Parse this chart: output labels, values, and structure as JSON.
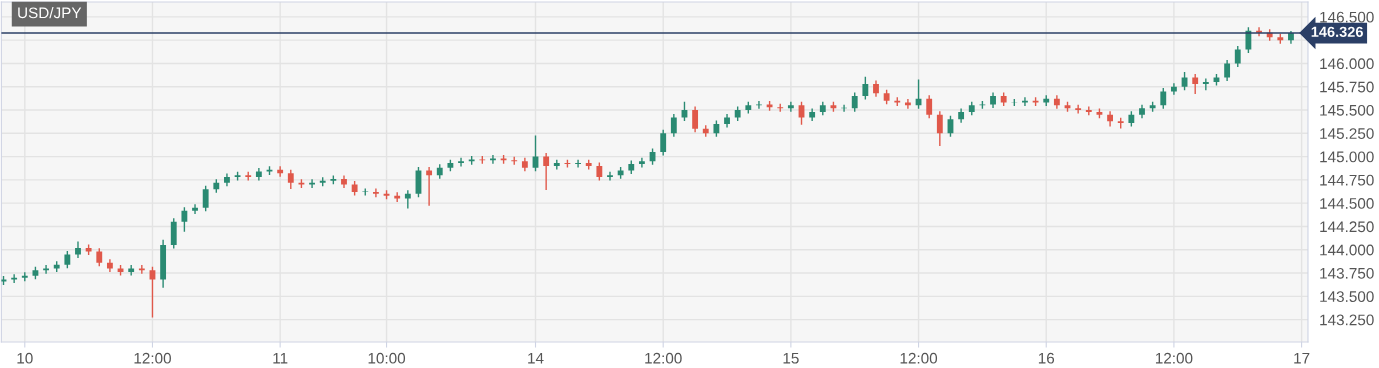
{
  "chart_data": {
    "type": "candlestick",
    "title": "USD/JPY",
    "categories": [
      null,
      null,
      "10",
      null,
      null,
      null,
      null,
      null,
      null,
      null,
      null,
      null,
      null,
      null,
      "12:00",
      null,
      null,
      null,
      null,
      null,
      null,
      null,
      null,
      null,
      null,
      null,
      "11",
      null,
      null,
      null,
      null,
      null,
      null,
      null,
      null,
      null,
      "10:00",
      null,
      null,
      null,
      null,
      null,
      null,
      null,
      null,
      null,
      null,
      null,
      null,
      null,
      "14",
      null,
      null,
      null,
      null,
      null,
      null,
      null,
      null,
      null,
      null,
      null,
      "12:00",
      null,
      null,
      null,
      null,
      null,
      null,
      null,
      null,
      null,
      null,
      null,
      "15",
      null,
      null,
      null,
      null,
      null,
      null,
      null,
      null,
      null,
      null,
      null,
      "12:00",
      null,
      null,
      null,
      null,
      null,
      null,
      null,
      null,
      null,
      null,
      null,
      "16",
      null,
      null,
      null,
      null,
      null,
      null,
      null,
      null,
      null,
      null,
      null,
      "12:00",
      null,
      null,
      null,
      null,
      null,
      null,
      null,
      null,
      null,
      null,
      null,
      "17"
    ],
    "ohlc": [
      [
        143.66,
        143.71,
        143.63,
        143.68
      ],
      [
        143.68,
        143.73,
        143.65,
        143.7
      ],
      [
        143.7,
        143.75,
        143.67,
        143.72
      ],
      [
        143.72,
        143.81,
        143.69,
        143.78
      ],
      [
        143.78,
        143.83,
        143.75,
        143.8
      ],
      [
        143.8,
        143.87,
        143.77,
        143.84
      ],
      [
        143.84,
        143.98,
        143.81,
        143.95
      ],
      [
        143.95,
        144.08,
        143.92,
        144.02
      ],
      [
        144.02,
        144.05,
        143.95,
        143.98
      ],
      [
        143.98,
        144.01,
        143.83,
        143.86
      ],
      [
        143.86,
        143.89,
        143.77,
        143.8
      ],
      [
        143.8,
        143.83,
        143.73,
        143.76
      ],
      [
        143.76,
        143.83,
        143.73,
        143.8
      ],
      [
        143.8,
        143.83,
        143.75,
        143.78
      ],
      [
        143.78,
        143.81,
        143.28,
        143.68
      ],
      [
        143.68,
        144.1,
        143.6,
        144.05
      ],
      [
        144.05,
        144.33,
        144.02,
        144.3
      ],
      [
        144.3,
        144.45,
        144.2,
        144.42
      ],
      [
        144.42,
        144.48,
        144.39,
        144.45
      ],
      [
        144.45,
        144.68,
        144.42,
        144.65
      ],
      [
        144.65,
        144.75,
        144.62,
        144.72
      ],
      [
        144.72,
        144.81,
        144.69,
        144.78
      ],
      [
        144.78,
        144.83,
        144.75,
        144.8
      ],
      [
        144.8,
        144.83,
        144.75,
        144.78
      ],
      [
        144.78,
        144.87,
        144.75,
        144.84
      ],
      [
        144.84,
        144.89,
        144.81,
        144.86
      ],
      [
        144.86,
        144.89,
        144.79,
        144.82
      ],
      [
        144.82,
        144.85,
        144.66,
        144.72
      ],
      [
        144.72,
        144.75,
        144.67,
        144.7
      ],
      [
        144.7,
        144.75,
        144.67,
        144.72
      ],
      [
        144.72,
        144.77,
        144.69,
        144.74
      ],
      [
        144.74,
        144.79,
        144.71,
        144.76
      ],
      [
        144.76,
        144.79,
        144.67,
        144.7
      ],
      [
        144.7,
        144.73,
        144.59,
        144.62
      ],
      [
        144.62,
        144.65,
        144.59,
        144.62
      ],
      [
        144.62,
        144.65,
        144.57,
        144.6
      ],
      [
        144.6,
        144.63,
        144.55,
        144.58
      ],
      [
        144.58,
        144.61,
        144.52,
        144.55
      ],
      [
        144.55,
        144.63,
        144.45,
        144.6
      ],
      [
        144.6,
        144.88,
        144.57,
        144.85
      ],
      [
        144.85,
        144.88,
        144.48,
        144.8
      ],
      [
        144.8,
        144.91,
        144.77,
        144.88
      ],
      [
        144.88,
        144.96,
        144.85,
        144.93
      ],
      [
        144.93,
        144.98,
        144.9,
        144.95
      ],
      [
        144.95,
        145.0,
        144.92,
        144.97
      ],
      [
        144.97,
        145.0,
        144.93,
        144.96
      ],
      [
        144.96,
        145.01,
        144.93,
        144.98
      ],
      [
        144.98,
        145.01,
        144.93,
        144.96
      ],
      [
        144.96,
        144.99,
        144.92,
        144.95
      ],
      [
        144.95,
        144.98,
        144.85,
        144.88
      ],
      [
        144.88,
        145.22,
        144.85,
        145.0
      ],
      [
        145.0,
        145.03,
        144.65,
        144.9
      ],
      [
        144.9,
        144.96,
        144.87,
        144.93
      ],
      [
        144.93,
        144.96,
        144.89,
        144.92
      ],
      [
        144.92,
        144.96,
        144.89,
        144.93
      ],
      [
        144.93,
        144.96,
        144.87,
        144.9
      ],
      [
        144.9,
        144.93,
        144.75,
        144.78
      ],
      [
        144.78,
        144.83,
        144.75,
        144.8
      ],
      [
        144.8,
        144.88,
        144.77,
        144.85
      ],
      [
        144.85,
        144.95,
        144.82,
        144.92
      ],
      [
        144.92,
        144.98,
        144.89,
        144.95
      ],
      [
        144.95,
        145.08,
        144.92,
        145.05
      ],
      [
        145.05,
        145.28,
        145.02,
        145.25
      ],
      [
        145.25,
        145.45,
        145.22,
        145.42
      ],
      [
        145.42,
        145.58,
        145.39,
        145.5
      ],
      [
        145.5,
        145.53,
        145.27,
        145.3
      ],
      [
        145.3,
        145.33,
        145.22,
        145.25
      ],
      [
        145.25,
        145.38,
        145.22,
        145.35
      ],
      [
        145.35,
        145.45,
        145.32,
        145.42
      ],
      [
        145.42,
        145.53,
        145.39,
        145.5
      ],
      [
        145.5,
        145.58,
        145.47,
        145.55
      ],
      [
        145.55,
        145.59,
        145.52,
        145.56
      ],
      [
        145.56,
        145.59,
        145.5,
        145.53
      ],
      [
        145.53,
        145.56,
        145.49,
        145.52
      ],
      [
        145.52,
        145.58,
        145.49,
        145.55
      ],
      [
        145.55,
        145.58,
        145.35,
        145.42
      ],
      [
        145.42,
        145.51,
        145.39,
        145.48
      ],
      [
        145.48,
        145.58,
        145.45,
        145.55
      ],
      [
        145.55,
        145.58,
        145.49,
        145.52
      ],
      [
        145.52,
        145.55,
        145.49,
        145.52
      ],
      [
        145.52,
        145.68,
        145.49,
        145.65
      ],
      [
        145.65,
        145.85,
        145.62,
        145.78
      ],
      [
        145.78,
        145.81,
        145.65,
        145.68
      ],
      [
        145.68,
        145.71,
        145.57,
        145.6
      ],
      [
        145.6,
        145.63,
        145.55,
        145.58
      ],
      [
        145.58,
        145.61,
        145.52,
        145.55
      ],
      [
        145.55,
        145.82,
        145.52,
        145.62
      ],
      [
        145.62,
        145.65,
        145.42,
        145.45
      ],
      [
        145.45,
        145.48,
        145.12,
        145.25
      ],
      [
        145.25,
        145.43,
        145.22,
        145.4
      ],
      [
        145.4,
        145.51,
        145.37,
        145.48
      ],
      [
        145.48,
        145.58,
        145.45,
        145.55
      ],
      [
        145.55,
        145.59,
        145.52,
        145.56
      ],
      [
        145.56,
        145.68,
        145.53,
        145.65
      ],
      [
        145.65,
        145.68,
        145.55,
        145.58
      ],
      [
        145.58,
        145.61,
        145.55,
        145.58
      ],
      [
        145.58,
        145.63,
        145.55,
        145.6
      ],
      [
        145.6,
        145.63,
        145.55,
        145.58
      ],
      [
        145.58,
        145.65,
        145.55,
        145.62
      ],
      [
        145.62,
        145.65,
        145.52,
        145.55
      ],
      [
        145.55,
        145.58,
        145.49,
        145.52
      ],
      [
        145.52,
        145.55,
        145.47,
        145.5
      ],
      [
        145.5,
        145.53,
        145.45,
        145.48
      ],
      [
        145.48,
        145.51,
        145.42,
        145.45
      ],
      [
        145.45,
        145.48,
        145.33,
        145.38
      ],
      [
        145.38,
        145.41,
        145.31,
        145.36
      ],
      [
        145.36,
        145.48,
        145.33,
        145.45
      ],
      [
        145.45,
        145.55,
        145.42,
        145.52
      ],
      [
        145.52,
        145.58,
        145.49,
        145.55
      ],
      [
        145.55,
        145.73,
        145.52,
        145.7
      ],
      [
        145.7,
        145.78,
        145.67,
        145.75
      ],
      [
        145.75,
        145.9,
        145.72,
        145.85
      ],
      [
        145.85,
        145.88,
        145.68,
        145.78
      ],
      [
        145.78,
        145.83,
        145.72,
        145.8
      ],
      [
        145.8,
        145.88,
        145.77,
        145.85
      ],
      [
        145.85,
        146.03,
        145.82,
        146.0
      ],
      [
        146.0,
        146.18,
        145.97,
        146.15
      ],
      [
        146.15,
        146.38,
        146.12,
        146.35
      ],
      [
        146.35,
        146.38,
        146.3,
        146.33
      ],
      [
        146.33,
        146.36,
        146.25,
        146.28
      ],
      [
        146.28,
        146.31,
        146.22,
        146.25
      ],
      [
        146.25,
        146.34,
        146.22,
        146.326
      ],
      null
    ],
    "colors": [
      "#2a8a72",
      "#2a8a72",
      "#2a8a72",
      "#2a8a72",
      "#2a8a72",
      "#2a8a72",
      "#2a8a72",
      "#2a8a72",
      "#e0584a",
      "#e0584a",
      "#e0584a",
      "#e0584a",
      "#2a8a72",
      "#e0584a",
      "#e0584a",
      "#2a8a72",
      "#2a8a72",
      "#2a8a72",
      "#2a8a72",
      "#2a8a72",
      "#2a8a72",
      "#2a8a72",
      "#2a8a72",
      "#e0584a",
      "#2a8a72",
      "#2a8a72",
      "#e0584a",
      "#e0584a",
      "#e0584a",
      "#2a8a72",
      "#2a8a72",
      "#2a8a72",
      "#e0584a",
      "#e0584a",
      "#2a8a72",
      "#e0584a",
      "#e0584a",
      "#e0584a",
      "#2a8a72",
      "#2a8a72",
      "#e0584a",
      "#2a8a72",
      "#2a8a72",
      "#2a8a72",
      "#2a8a72",
      "#e0584a",
      "#2a8a72",
      "#e0584a",
      "#e0584a",
      "#e0584a",
      "#2a8a72",
      "#e0584a",
      "#2a8a72",
      "#e0584a",
      "#2a8a72",
      "#e0584a",
      "#e0584a",
      "#2a8a72",
      "#2a8a72",
      "#2a8a72",
      "#2a8a72",
      "#2a8a72",
      "#2a8a72",
      "#2a8a72",
      "#2a8a72",
      "#e0584a",
      "#e0584a",
      "#2a8a72",
      "#2a8a72",
      "#2a8a72",
      "#2a8a72",
      "#2a8a72",
      "#e0584a",
      "#e0584a",
      "#2a8a72",
      "#e0584a",
      "#2a8a72",
      "#2a8a72",
      "#e0584a",
      "#2a8a72",
      "#2a8a72",
      "#2a8a72",
      "#e0584a",
      "#e0584a",
      "#e0584a",
      "#e0584a",
      "#2a8a72",
      "#e0584a",
      "#e0584a",
      "#2a8a72",
      "#2a8a72",
      "#2a8a72",
      "#2a8a72",
      "#2a8a72",
      "#e0584a",
      "#2a8a72",
      "#2a8a72",
      "#e0584a",
      "#2a8a72",
      "#e0584a",
      "#e0584a",
      "#e0584a",
      "#e0584a",
      "#e0584a",
      "#e0584a",
      "#e0584a",
      "#2a8a72",
      "#2a8a72",
      "#2a8a72",
      "#2a8a72",
      "#2a8a72",
      "#2a8a72",
      "#e0584a",
      "#2a8a72",
      "#2a8a72",
      "#2a8a72",
      "#2a8a72",
      "#2a8a72",
      "#e0584a",
      "#e0584a",
      "#e0584a",
      "#2a8a72",
      null
    ],
    "ylim": [
      143.01,
      146.66
    ],
    "yticks": [
      {
        "value": 143.25,
        "label": "143.250"
      },
      {
        "value": 143.5,
        "label": "143.500"
      },
      {
        "value": 143.75,
        "label": "143.750"
      },
      {
        "value": 144.0,
        "label": "144.000"
      },
      {
        "value": 144.25,
        "label": "144.250"
      },
      {
        "value": 144.5,
        "label": "144.500"
      },
      {
        "value": 144.75,
        "label": "144.750"
      },
      {
        "value": 145.0,
        "label": "145.000"
      },
      {
        "value": 145.25,
        "label": "145.250"
      },
      {
        "value": 145.5,
        "label": "145.500"
      },
      {
        "value": 145.75,
        "label": "145.750"
      },
      {
        "value": 146.0,
        "label": "146.000"
      },
      {
        "value": 146.25,
        "label": null
      },
      {
        "value": 146.5,
        "label": "146.500"
      }
    ],
    "ref_lines": [
      {
        "axis": "y",
        "value": 146.326,
        "label": "146.326",
        "color": "#2b3f66"
      }
    ],
    "grid": true
  }
}
